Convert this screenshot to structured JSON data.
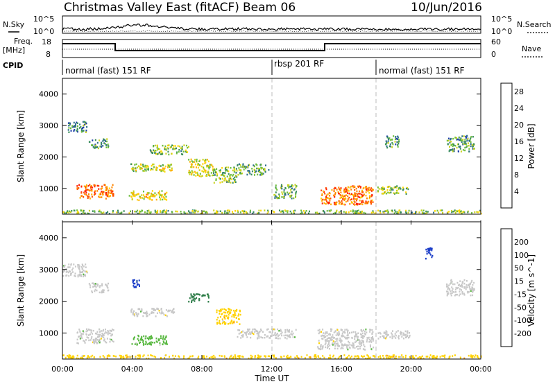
{
  "header": {
    "station": "Christmas Valley East (fitACF)",
    "beam": "Beam 06",
    "date": "10/Jun/2016"
  },
  "status_panel": {
    "nsky_label": "N.Sky",
    "nsearch_label": "N.Search",
    "noise_ticks": [
      "10^5",
      "10^0"
    ],
    "freq_label": "Freq.",
    "freq_unit": "[MHz]",
    "freq_ticks": [
      "18",
      "8"
    ],
    "nave_label": "Nave",
    "nave_ticks": [
      "60",
      "0"
    ],
    "cpid_label": "CPID",
    "cpid_segments": [
      {
        "label": "normal (fast) 151 RF",
        "start_hour": 0,
        "end_hour": 12
      },
      {
        "label": "rbsp 201 RF",
        "start_hour": 12,
        "end_hour": 18
      },
      {
        "label": "normal (fast) 151 RF",
        "start_hour": 18,
        "end_hour": 24
      }
    ]
  },
  "chart_data": [
    {
      "type": "heatmap",
      "title": "",
      "xlabel": "Time UT",
      "ylabel": "Slant Range [km]",
      "xlim": [
        0,
        24
      ],
      "ylim": [
        180,
        4500
      ],
      "x_ticks": [
        "00:00",
        "04:00",
        "08:00",
        "12:00",
        "16:00",
        "20:00",
        "00:00"
      ],
      "y_ticks": [
        1000,
        2000,
        3000,
        4000
      ],
      "colorbar": {
        "label": "Power [dB]",
        "ticks": [
          4,
          8,
          12,
          16,
          20,
          24,
          28
        ],
        "range": [
          0,
          30
        ],
        "colors": [
          "#0000ff",
          "#1e3fa8",
          "#2f6f8a",
          "#3a8f5a",
          "#6dbd3a",
          "#c9d21c",
          "#ffd700",
          "#ffb000",
          "#ff8400",
          "#ff5000",
          "#ff1e00",
          "#ff0000"
        ]
      },
      "echo_regions": [
        {
          "t0": 0.8,
          "t1": 2.9,
          "r0": 700,
          "r1": 1150,
          "value": 22
        },
        {
          "t0": 0.3,
          "t1": 1.4,
          "r0": 2800,
          "r1": 3150,
          "value": 8
        },
        {
          "t0": 1.5,
          "t1": 2.6,
          "r0": 2300,
          "r1": 2600,
          "value": 8
        },
        {
          "t0": 3.9,
          "t1": 6.4,
          "r0": 1550,
          "r1": 1800,
          "value": 14
        },
        {
          "t0": 3.8,
          "t1": 6.0,
          "r0": 650,
          "r1": 950,
          "value": 16
        },
        {
          "t0": 5.0,
          "t1": 7.2,
          "r0": 2100,
          "r1": 2400,
          "value": 12
        },
        {
          "t0": 7.2,
          "t1": 8.6,
          "r0": 1400,
          "r1": 1950,
          "value": 15
        },
        {
          "t0": 8.6,
          "t1": 10.0,
          "r0": 1200,
          "r1": 1700,
          "value": 12
        },
        {
          "t0": 10.0,
          "t1": 11.8,
          "r0": 1450,
          "r1": 1800,
          "value": 10
        },
        {
          "t0": 12.1,
          "t1": 13.4,
          "r0": 700,
          "r1": 1150,
          "value": 10
        },
        {
          "t0": 14.8,
          "t1": 17.8,
          "r0": 500,
          "r1": 1100,
          "value": 22
        },
        {
          "t0": 18.0,
          "t1": 19.9,
          "r0": 850,
          "r1": 1100,
          "value": 12
        },
        {
          "t0": 18.5,
          "t1": 19.3,
          "r0": 2300,
          "r1": 2700,
          "value": 8
        },
        {
          "t0": 22.0,
          "t1": 23.6,
          "r0": 2200,
          "r1": 2700,
          "value": 9
        },
        {
          "t0": 0.0,
          "t1": 24.0,
          "r0": 220,
          "r1": 330,
          "value": 12
        }
      ]
    },
    {
      "type": "heatmap",
      "title": "",
      "xlabel": "Time UT",
      "ylabel": "Slant Range [km]",
      "xlim": [
        0,
        24
      ],
      "ylim": [
        180,
        4500
      ],
      "x_ticks": [
        "00:00",
        "04:00",
        "08:00",
        "12:00",
        "16:00",
        "20:00",
        "00:00"
      ],
      "y_ticks": [
        1000,
        2000,
        3000,
        4000
      ],
      "colorbar": {
        "label": "Velocity [m s^-1]",
        "ticks": [
          "200",
          "100",
          "50",
          "15",
          "-15",
          "-50",
          "-100",
          "-200"
        ],
        "colors": [
          "#1a3cc8",
          "#2a5b8a",
          "#2f7d4a",
          "#58b840",
          "#c8c8c8",
          "#ffd200",
          "#ff9a00",
          "#ff5a00",
          "#ff0000"
        ]
      },
      "echo_regions": [
        {
          "t0": 0.8,
          "t1": 2.9,
          "r0": 700,
          "r1": 1150,
          "value": 0
        },
        {
          "t0": 0.0,
          "t1": 1.4,
          "r0": 2800,
          "r1": 3200,
          "value": 0
        },
        {
          "t0": 1.5,
          "t1": 2.6,
          "r0": 2300,
          "r1": 2600,
          "value": 0
        },
        {
          "t0": 3.9,
          "t1": 6.4,
          "r0": 1550,
          "r1": 1800,
          "value": 0
        },
        {
          "t0": 3.9,
          "t1": 6.0,
          "r0": 650,
          "r1": 950,
          "value": 25
        },
        {
          "t0": 4.0,
          "t1": 4.4,
          "r0": 2450,
          "r1": 2700,
          "value": 210
        },
        {
          "t0": 7.2,
          "t1": 8.4,
          "r0": 2000,
          "r1": 2250,
          "value": 60
        },
        {
          "t0": 8.8,
          "t1": 10.2,
          "r0": 1300,
          "r1": 1800,
          "value": -40
        },
        {
          "t0": 10.0,
          "t1": 13.4,
          "r0": 850,
          "r1": 1150,
          "value": 0
        },
        {
          "t0": 14.6,
          "t1": 17.8,
          "r0": 500,
          "r1": 1150,
          "value": 0
        },
        {
          "t0": 18.0,
          "t1": 19.9,
          "r0": 850,
          "r1": 1100,
          "value": 0
        },
        {
          "t0": 20.8,
          "t1": 21.2,
          "r0": 3350,
          "r1": 3700,
          "value": 220
        },
        {
          "t0": 22.0,
          "t1": 23.6,
          "r0": 2200,
          "r1": 2700,
          "value": 0
        },
        {
          "t0": 0.0,
          "t1": 24.0,
          "r0": 220,
          "r1": 330,
          "value": -40
        }
      ]
    }
  ]
}
